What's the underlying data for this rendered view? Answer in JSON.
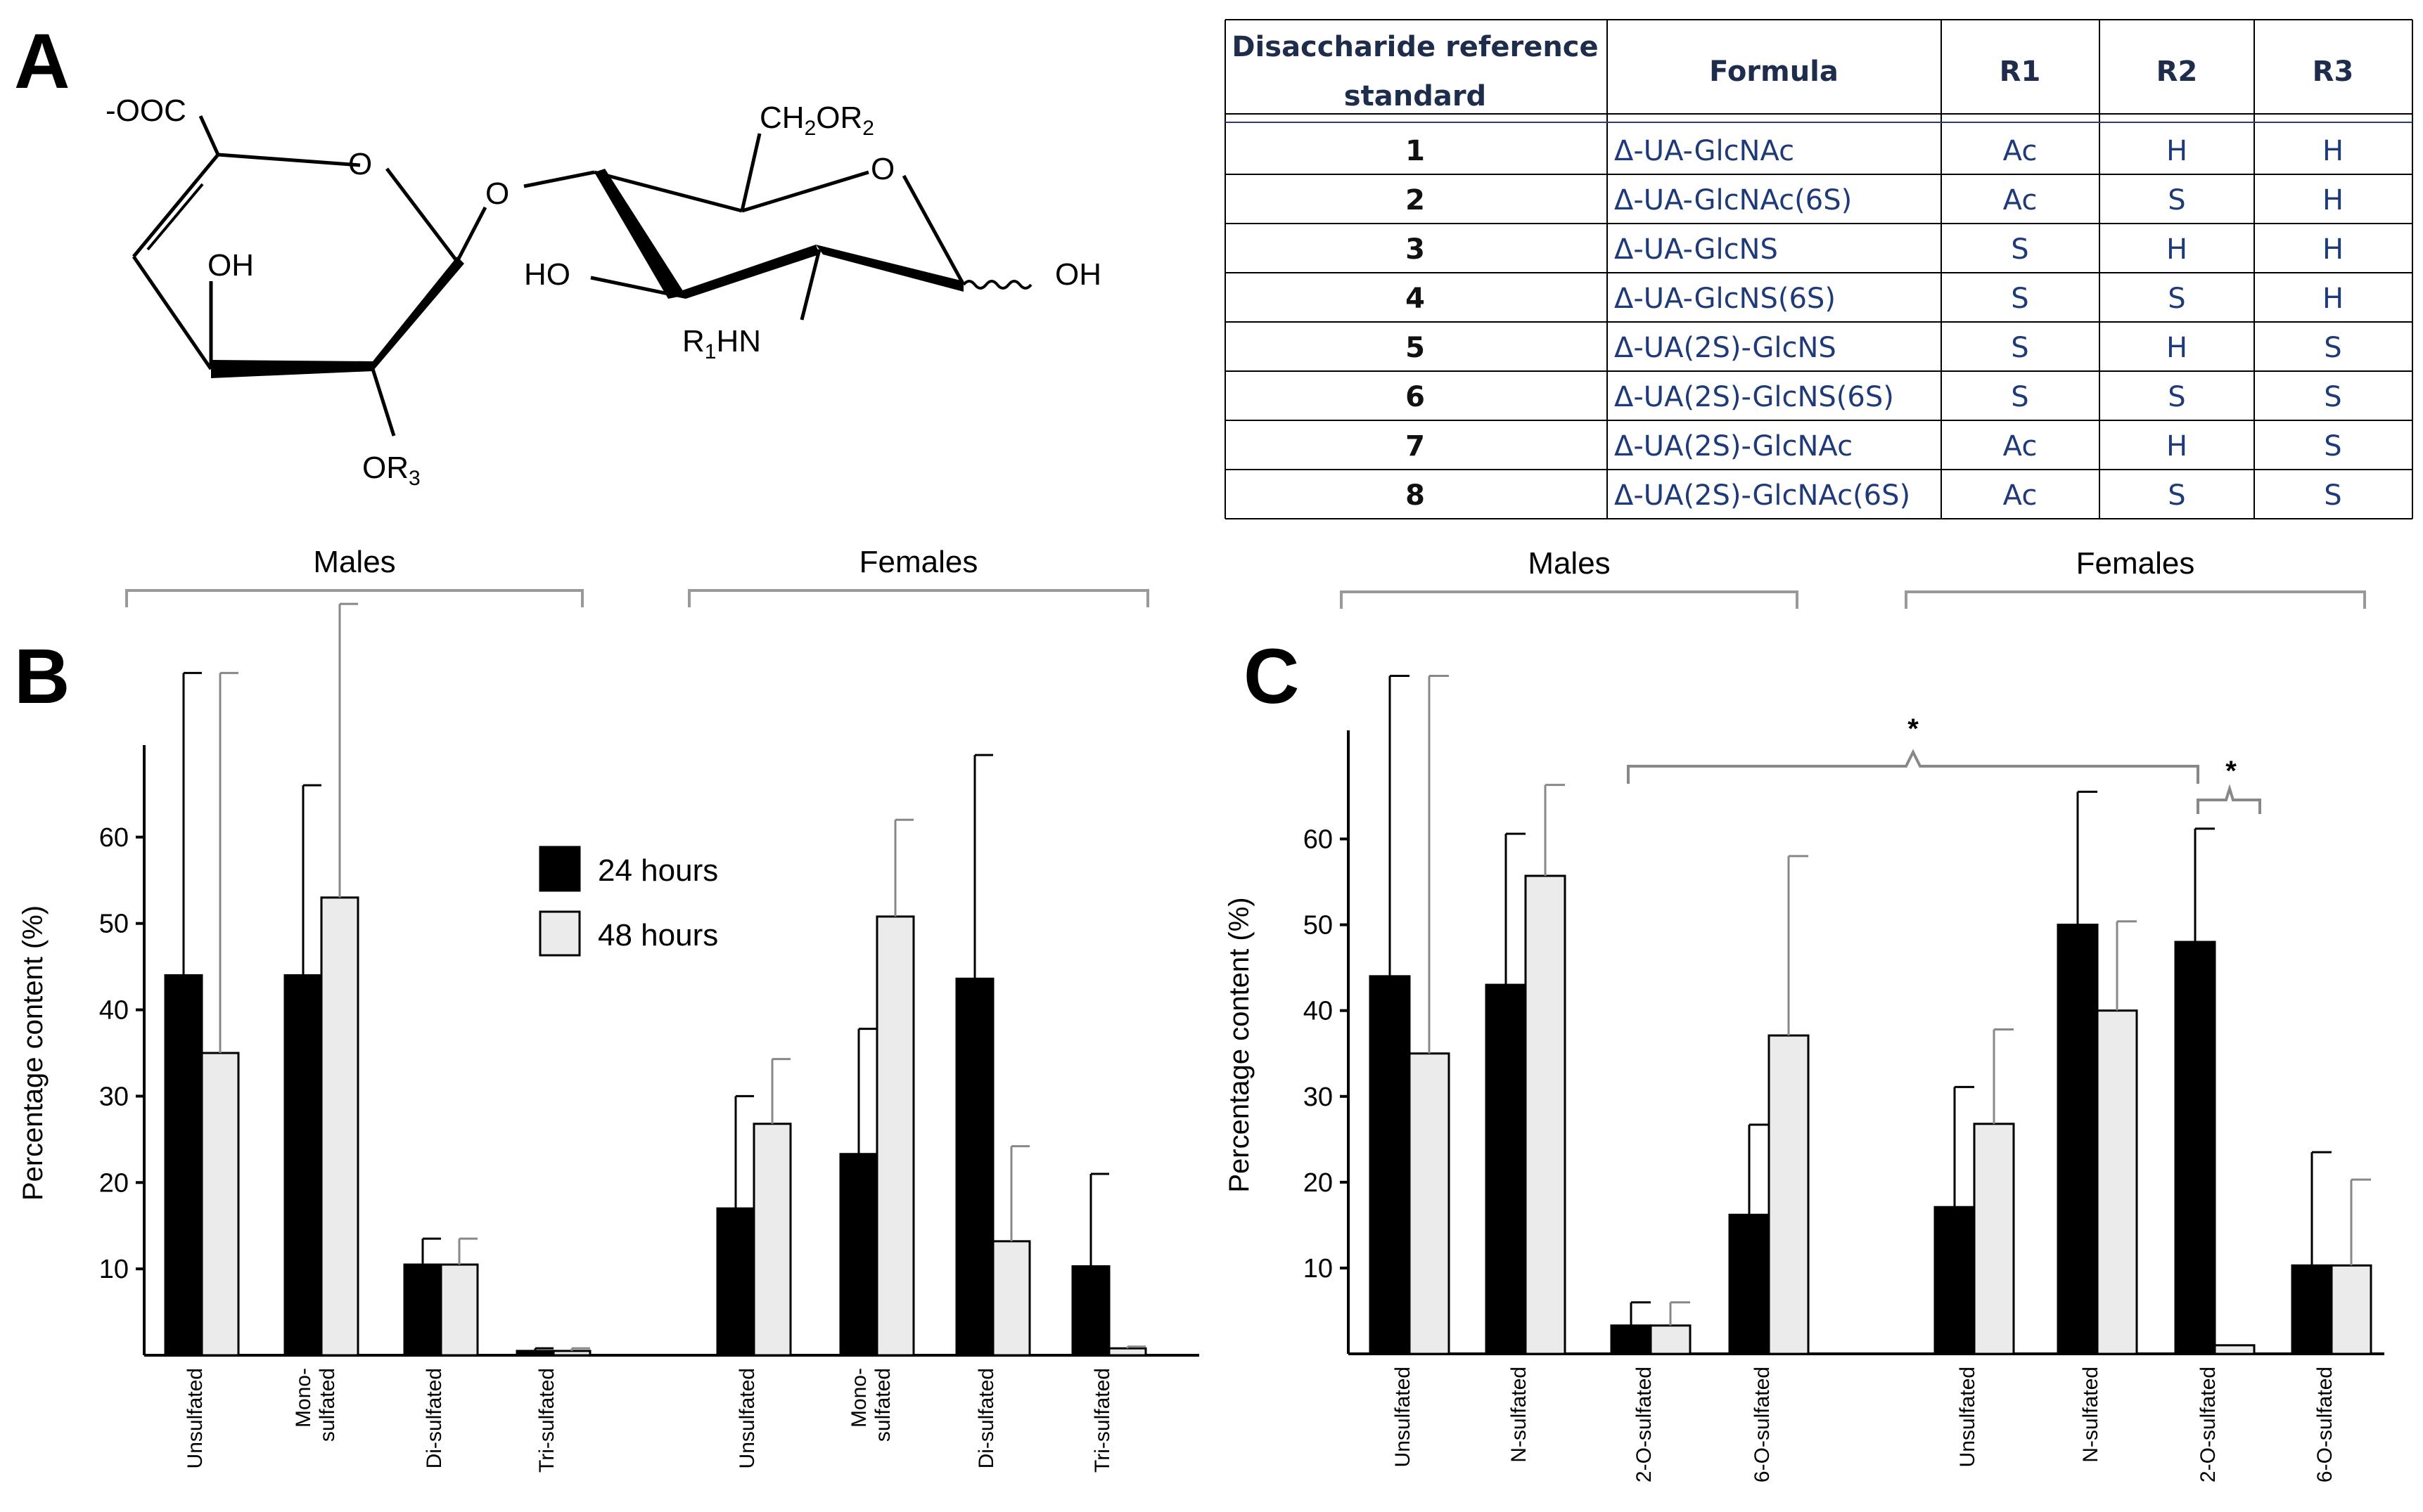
{
  "panels": {
    "a": "A",
    "b": "B",
    "c": "C"
  },
  "structure": {
    "coo": "-OOC",
    "o_ring1": "O",
    "o_link": "O",
    "o_ring2": "O",
    "oh1": "OH",
    "ho2": "HO",
    "oh_end": "OH",
    "ch2or2_main": "CH",
    "ch2or2_sub2": "2",
    "ch2or2_mid": "OR",
    "ch2or2_sub": "2",
    "r1hn_main": "R",
    "r1hn_sub": "1",
    "r1hn_end": "HN",
    "or3_main": "OR",
    "or3_sub": "3"
  },
  "table": {
    "headers": [
      "Disaccharide reference",
      "standard",
      "Formula",
      "R1",
      "R2",
      "R3"
    ],
    "rows": [
      {
        "id": "1",
        "formula": "Δ-UA-GlcNAc",
        "r1": "Ac",
        "r2": "H",
        "r3": "H"
      },
      {
        "id": "2",
        "formula": "Δ-UA-GlcNAc(6S)",
        "r1": "Ac",
        "r2": "S",
        "r3": "H"
      },
      {
        "id": "3",
        "formula": "Δ-UA-GlcNS",
        "r1": "S",
        "r2": "H",
        "r3": "H"
      },
      {
        "id": "4",
        "formula": "Δ-UA-GlcNS(6S)",
        "r1": "S",
        "r2": "S",
        "r3": "H"
      },
      {
        "id": "5",
        "formula": "Δ-UA(2S)-GlcNS",
        "r1": "S",
        "r2": "H",
        "r3": "S"
      },
      {
        "id": "6",
        "formula": "Δ-UA(2S)-GlcNS(6S)",
        "r1": "S",
        "r2": "S",
        "r3": "S"
      },
      {
        "id": "7",
        "formula": "Δ-UA(2S)-GlcNAc",
        "r1": "Ac",
        "r2": "H",
        "r3": "S"
      },
      {
        "id": "8",
        "formula": "Δ-UA(2S)-GlcNAc(6S)",
        "r1": "Ac",
        "r2": "S",
        "r3": "S"
      }
    ]
  },
  "chart_data": [
    {
      "panel": "B",
      "type": "bar",
      "ylabel": "Percentage content (%)",
      "ylim": [
        0,
        70
      ],
      "yticks": [
        10,
        20,
        30,
        40,
        50,
        60
      ],
      "groups": [
        "Males",
        "Females"
      ],
      "legend": [
        "24 hours",
        "48 hours"
      ],
      "categories": [
        "Unsulfated",
        "Mono- sulfated",
        "Di-sulfated",
        "Tri-sulfated",
        "Unsulfated",
        "Mono- sulfated",
        "Di-sulfated",
        "Tri-sulfated"
      ],
      "series": [
        {
          "name": "24 hours",
          "values": [
            44,
            44,
            10.5,
            0.5,
            17,
            23.3,
            43.6,
            10.3
          ],
          "errors": [
            79,
            66,
            13.5,
            0.8,
            30,
            37.8,
            69.5,
            21
          ]
        },
        {
          "name": "48 hours",
          "values": [
            35,
            53,
            10.5,
            0.5,
            26.8,
            50.8,
            13.2,
            0.8
          ],
          "errors": [
            79,
            87,
            13.5,
            0.8,
            34.3,
            62,
            24.2,
            1
          ]
        }
      ]
    },
    {
      "panel": "C",
      "type": "bar",
      "ylabel": "Percentage content (%)",
      "ylim": [
        0,
        72
      ],
      "yticks": [
        10,
        20,
        30,
        40,
        50,
        60
      ],
      "groups": [
        "Males",
        "Females"
      ],
      "categories": [
        "Unsulfated",
        "N-sulfated",
        "2-O-sulfated",
        "6-O-sulfated",
        "Unsulfated",
        "N-sulfated",
        "2-O-sulfated",
        "6-O-sulfated"
      ],
      "series": [
        {
          "name": "24 hours",
          "values": [
            44,
            43,
            3.3,
            16.2,
            17.1,
            50,
            48,
            10.3
          ],
          "errors": [
            79,
            60.6,
            6,
            26.7,
            31.1,
            65.5,
            61.2,
            23.5
          ]
        },
        {
          "name": "48 hours",
          "values": [
            35,
            55.7,
            3.3,
            37.1,
            26.8,
            40,
            1,
            10.3
          ],
          "errors": [
            79,
            66.3,
            6,
            58,
            37.8,
            50.4,
            1,
            20.3
          ]
        }
      ],
      "annotations": [
        "*",
        "*"
      ]
    }
  ]
}
